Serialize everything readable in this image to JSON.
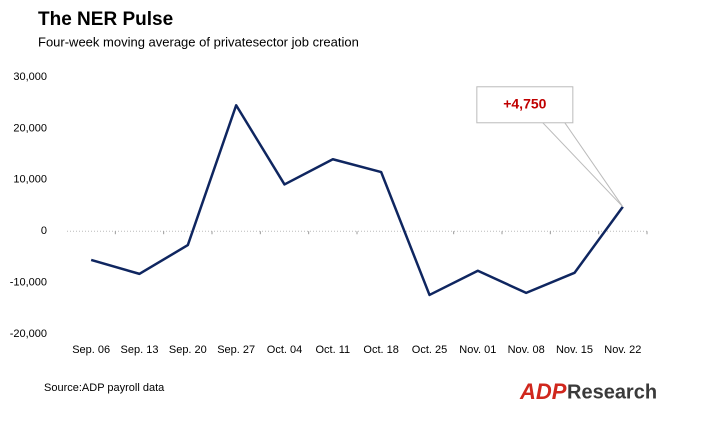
{
  "chart_data": {
    "type": "line",
    "title": "The NER Pulse",
    "subtitle": "Four-week moving average of privatesector job creation",
    "source": "Source:ADP payroll data",
    "logo": {
      "brand": "ADP",
      "text": "Research"
    },
    "categories": [
      "Sep. 06",
      "Sep. 13",
      "Sep. 20",
      "Sep. 27",
      "Oct. 04",
      "Oct. 11",
      "Oct. 18",
      "Oct. 25",
      "Nov. 01",
      "Nov. 08",
      "Nov. 15",
      "Nov. 22"
    ],
    "series": [
      {
        "name": "Four-week moving average",
        "color": "#0f2660",
        "values": [
          -5600,
          -8300,
          -2700,
          24500,
          9100,
          14000,
          11500,
          -12400,
          -7700,
          -12000,
          -8100,
          4750
        ],
        "value_labels": [
          null,
          null,
          null,
          null,
          null,
          null,
          null,
          null,
          null,
          null,
          null,
          "+4,750"
        ]
      }
    ],
    "ylim": [
      -20000,
      30000
    ],
    "yticks": [
      {
        "value": -20000,
        "label": "-20,000"
      },
      {
        "value": -10000,
        "label": "-10,000"
      },
      0,
      {
        "value": 10000,
        "label": "10,000"
      },
      {
        "value": 20000,
        "label": "20,000"
      },
      {
        "value": 30000,
        "label": "30,000"
      }
    ],
    "grid": false
  }
}
